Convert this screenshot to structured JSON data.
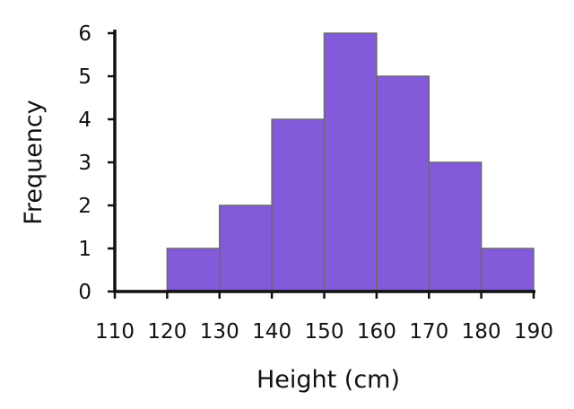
{
  "chart_data": {
    "type": "bar",
    "title": "",
    "xlabel": "Height (cm)",
    "ylabel": "Frequency",
    "bins": [
      {
        "from": 120,
        "to": 130,
        "value": 1
      },
      {
        "from": 130,
        "to": 140,
        "value": 2
      },
      {
        "from": 140,
        "to": 150,
        "value": 4
      },
      {
        "from": 150,
        "to": 160,
        "value": 6
      },
      {
        "from": 160,
        "to": 170,
        "value": 5
      },
      {
        "from": 170,
        "to": 180,
        "value": 3
      },
      {
        "from": 180,
        "to": 190,
        "value": 1
      }
    ],
    "xlim": [
      110,
      190
    ],
    "ylim": [
      0,
      6
    ],
    "x_ticks": [
      "110",
      "120",
      "130",
      "140",
      "150",
      "160",
      "170",
      "180",
      "190"
    ],
    "y_ticks": [
      "0",
      "1",
      "2",
      "3",
      "4",
      "5",
      "6"
    ],
    "grid": false,
    "colors": {
      "bar_fill": "#835AD9",
      "bar_stroke": "#6a6a6a",
      "axis": "#111111"
    }
  }
}
